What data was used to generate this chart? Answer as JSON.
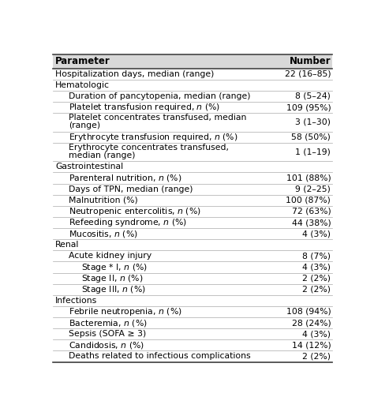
{
  "headers": [
    "Parameter",
    "Number"
  ],
  "rows": [
    {
      "param": "Hospitalization days, median (range)",
      "value": "22 (16–85)",
      "indent": 0,
      "is_section": false,
      "n_lines": 1
    },
    {
      "param": "Hematologic",
      "value": "",
      "indent": 0,
      "is_section": true,
      "n_lines": 1
    },
    {
      "param": "Duration of pancytopenia, median (range)",
      "value": "8 (5–24)",
      "indent": 1,
      "is_section": false,
      "n_lines": 1
    },
    {
      "param": "Platelet transfusion required, $n$ (%)",
      "value": "109 (95%)",
      "indent": 1,
      "is_section": false,
      "n_lines": 1
    },
    {
      "param": "Platelet concentrates transfused, median\n(range)",
      "value": "3 (1–30)",
      "indent": 1,
      "is_section": false,
      "n_lines": 2
    },
    {
      "param": "Erythrocyte transfusion required, $n$ (%)",
      "value": "58 (50%)",
      "indent": 1,
      "is_section": false,
      "n_lines": 1
    },
    {
      "param": "Erythrocyte concentrates transfused,\nmedian (range)",
      "value": "1 (1–19)",
      "indent": 1,
      "is_section": false,
      "n_lines": 2
    },
    {
      "param": "Gastrointestinal",
      "value": "",
      "indent": 0,
      "is_section": true,
      "n_lines": 1
    },
    {
      "param": "Parenteral nutrition, $n$ (%)",
      "value": "101 (88%)",
      "indent": 1,
      "is_section": false,
      "n_lines": 1
    },
    {
      "param": "Days of TPN, median (range)",
      "value": "9 (2–25)",
      "indent": 1,
      "is_section": false,
      "n_lines": 1
    },
    {
      "param": "Malnutrition (%)",
      "value": "100 (87%)",
      "indent": 1,
      "is_section": false,
      "n_lines": 1
    },
    {
      "param": "Neutropenic entercolitis, $n$ (%)",
      "value": "72 (63%)",
      "indent": 1,
      "is_section": false,
      "n_lines": 1
    },
    {
      "param": "Refeeding syndrome, $n$ (%)",
      "value": "44 (38%)",
      "indent": 1,
      "is_section": false,
      "n_lines": 1
    },
    {
      "param": "Mucositis, $n$ (%)",
      "value": "4 (3%)",
      "indent": 1,
      "is_section": false,
      "n_lines": 1
    },
    {
      "param": "Renal",
      "value": "",
      "indent": 0,
      "is_section": true,
      "n_lines": 1
    },
    {
      "param": "Acute kidney injury",
      "value": "8 (7%)",
      "indent": 1,
      "is_section": false,
      "n_lines": 1
    },
    {
      "param": "Stage * I, $n$ (%)",
      "value": "4 (3%)",
      "indent": 2,
      "is_section": false,
      "n_lines": 1
    },
    {
      "param": "Stage II, $n$ (%)",
      "value": "2 (2%)",
      "indent": 2,
      "is_section": false,
      "n_lines": 1
    },
    {
      "param": "Stage III, $n$ (%)",
      "value": "2 (2%)",
      "indent": 2,
      "is_section": false,
      "n_lines": 1
    },
    {
      "param": "Infections",
      "value": "",
      "indent": 0,
      "is_section": true,
      "n_lines": 1
    },
    {
      "param": "Febrile neutropenia, $n$ (%)",
      "value": "108 (94%)",
      "indent": 1,
      "is_section": false,
      "n_lines": 1
    },
    {
      "param": "Bacteremia, $n$ (%)",
      "value": "28 (24%)",
      "indent": 1,
      "is_section": false,
      "n_lines": 1
    },
    {
      "param": "Sepsis (SOFA ≥ 3)",
      "value": "4 (3%)",
      "indent": 1,
      "is_section": false,
      "n_lines": 1
    },
    {
      "param": "Candidosis, $n$ (%)",
      "value": "14 (12%)",
      "indent": 1,
      "is_section": false,
      "n_lines": 1
    },
    {
      "param": "Deaths related to infectious complications",
      "value": "2 (2%)",
      "indent": 1,
      "is_section": false,
      "n_lines": 1
    }
  ],
  "header_bg": "#d8d8d8",
  "text_color": "#000000",
  "line_color": "#888888",
  "header_font_size": 8.5,
  "body_font_size": 7.8,
  "fig_width": 4.74,
  "fig_height": 5.22,
  "dpi": 100
}
